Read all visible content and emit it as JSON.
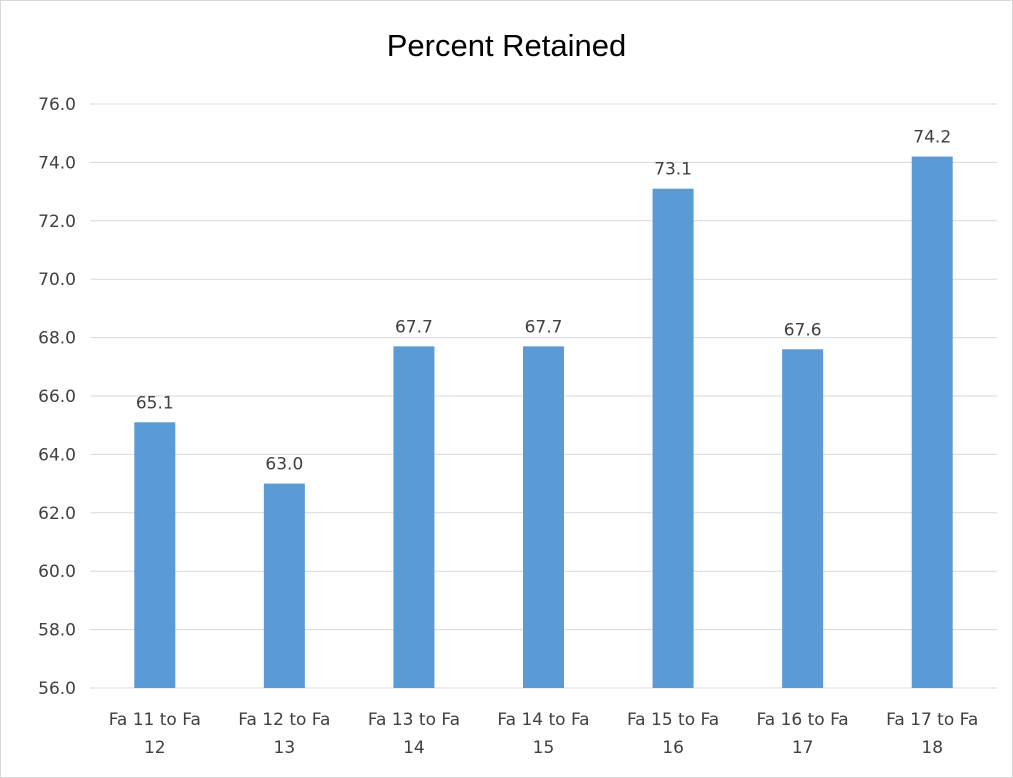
{
  "chart_data": {
    "type": "bar",
    "title": "Percent Retained",
    "xlabel": "",
    "ylabel": "",
    "categories": [
      "Fa 11 to Fa 12",
      "Fa 12 to Fa 13",
      "Fa 13 to Fa 14",
      "Fa 14 to Fa 15",
      "Fa 15 to Fa 16",
      "Fa 16 to Fa 17",
      "Fa 17 to Fa 18"
    ],
    "category_lines": [
      [
        "Fa 11 to Fa",
        "12"
      ],
      [
        "Fa 12 to Fa",
        "13"
      ],
      [
        "Fa 13 to Fa",
        "14"
      ],
      [
        "Fa 14 to Fa",
        "15"
      ],
      [
        "Fa 15 to Fa",
        "16"
      ],
      [
        "Fa 16 to Fa",
        "17"
      ],
      [
        "Fa 17 to Fa",
        "18"
      ]
    ],
    "values": [
      65.1,
      63.0,
      67.7,
      67.7,
      73.1,
      67.6,
      74.2
    ],
    "data_labels": [
      "65.1",
      "63.0",
      "67.7",
      "67.7",
      "73.1",
      "67.6",
      "74.2"
    ],
    "ylim": [
      56.0,
      76.0
    ],
    "y_ticks": [
      "56.0",
      "58.0",
      "60.0",
      "62.0",
      "64.0",
      "66.0",
      "68.0",
      "70.0",
      "72.0",
      "74.0",
      "76.0"
    ],
    "grid": true,
    "legend": "none",
    "colors": {
      "bar": "#5b9bd5",
      "grid": "#d9d9d9",
      "text": "#404040"
    }
  }
}
